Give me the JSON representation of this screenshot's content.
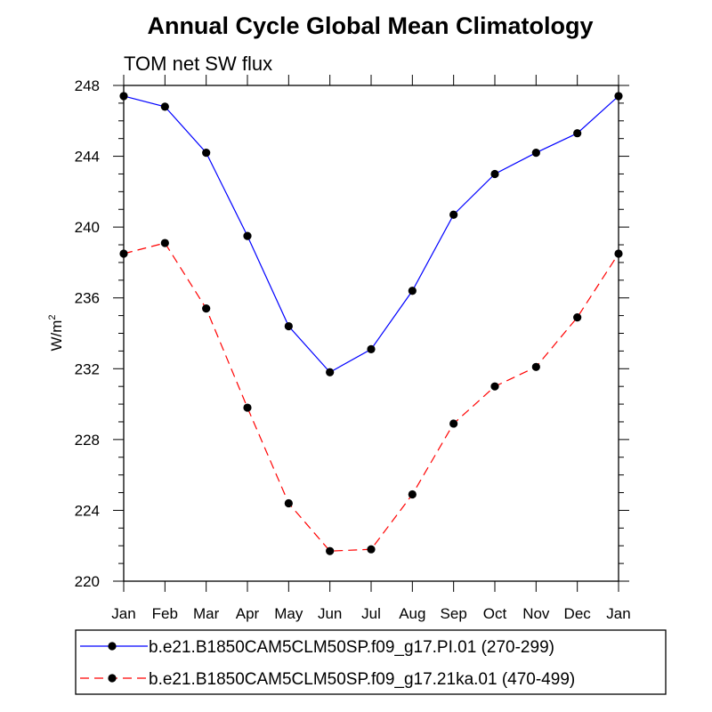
{
  "chart_data": {
    "type": "line",
    "title": "Annual Cycle Global Mean Climatology",
    "subtitle": "TOM net SW flux",
    "ylabel": "W/m",
    "ylabel_superscript": "2",
    "xlabel": "",
    "categories": [
      "Jan",
      "Feb",
      "Mar",
      "Apr",
      "May",
      "Jun",
      "Jul",
      "Aug",
      "Sep",
      "Oct",
      "Nov",
      "Dec",
      "Jan"
    ],
    "ylim": [
      220,
      248
    ],
    "yticks": [
      220,
      224,
      228,
      232,
      236,
      240,
      244,
      248
    ],
    "grid": false,
    "legend_position": "bottom",
    "series": [
      {
        "name": "b.e21.B1850CAM5CLM50SP.f09_g17.PI.01 (270-299)",
        "color": "#0000ff",
        "dash": "solid",
        "values": [
          247.4,
          246.8,
          244.2,
          239.5,
          234.4,
          231.8,
          233.1,
          236.4,
          240.7,
          243.0,
          244.2,
          245.3,
          247.4
        ]
      },
      {
        "name": "b.e21.B1850CAM5CLM50SP.f09_g17.21ka.01 (470-499)",
        "color": "#ff0000",
        "dash": "dashed",
        "values": [
          238.5,
          239.1,
          235.4,
          229.8,
          224.4,
          221.7,
          221.8,
          224.9,
          228.9,
          231.0,
          232.1,
          234.9,
          238.5
        ]
      }
    ]
  }
}
